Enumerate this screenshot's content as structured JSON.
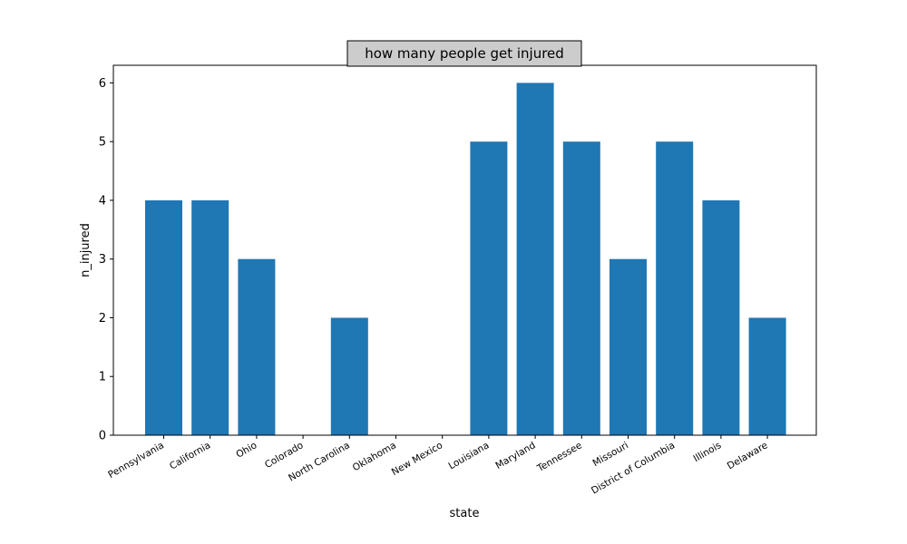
{
  "chart_data": {
    "type": "bar",
    "title": "how many people get injured",
    "xlabel": "state",
    "ylabel": "n_injured",
    "categories": [
      "Pennsylvania",
      "California",
      "Ohio",
      "Colorado",
      "North Carolina",
      "Oklahoma",
      "New Mexico",
      "Louisiana",
      "Maryland",
      "Tennessee",
      "Missouri",
      "District of Columbia",
      "Illinois",
      "Delaware"
    ],
    "values": [
      4,
      4,
      3,
      0,
      2,
      0,
      0,
      5,
      6,
      5,
      3,
      5,
      4,
      2
    ],
    "ylim": [
      0,
      6.3
    ],
    "yticks": [
      0,
      1,
      2,
      3,
      4,
      5,
      6
    ],
    "bar_color": "#1f77b4",
    "title_box_color": "#cccccc",
    "grid": false,
    "legend": "none"
  }
}
